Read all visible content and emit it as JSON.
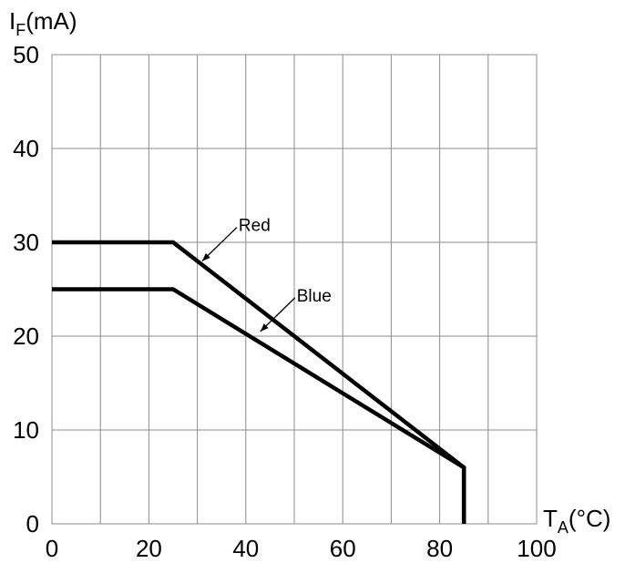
{
  "chart_data": {
    "type": "line",
    "title": "",
    "xlabel": {
      "main": "T",
      "sub": "A",
      "unit": "(°C)"
    },
    "ylabel": {
      "main": "I",
      "sub": "F",
      "unit": "(mA)"
    },
    "xlim": [
      0,
      100
    ],
    "ylim": [
      0,
      50
    ],
    "xticks": [
      0,
      20,
      40,
      60,
      80,
      100
    ],
    "yticks": [
      0,
      10,
      20,
      30,
      40,
      50
    ],
    "x_grid_step": 10,
    "y_grid_step": 10,
    "grid": true,
    "legend": "none",
    "series": [
      {
        "name": "Red",
        "points": [
          [
            0,
            30
          ],
          [
            25,
            30
          ],
          [
            85,
            6
          ],
          [
            85,
            0
          ]
        ]
      },
      {
        "name": "Blue",
        "points": [
          [
            0,
            25
          ],
          [
            25,
            25
          ],
          [
            85,
            6
          ],
          [
            85,
            0
          ]
        ]
      }
    ],
    "annotations": [
      {
        "text": "Red",
        "series": "Red",
        "at": [
          31,
          28
        ]
      },
      {
        "text": "Blue",
        "series": "Blue",
        "at": [
          43,
          20.5
        ]
      }
    ]
  }
}
